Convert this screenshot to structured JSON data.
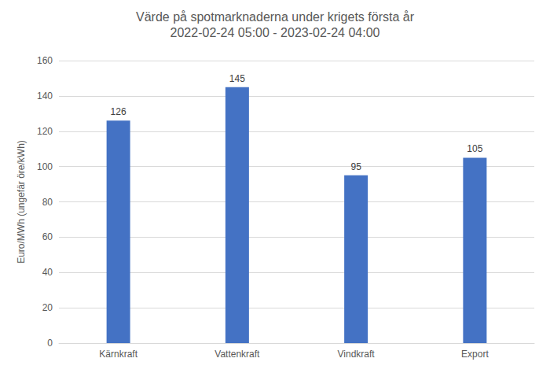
{
  "chart_data": {
    "type": "bar",
    "title": "Värde på spotmarknaderna under krigets första år",
    "subtitle": "2022-02-24 05:00 - 2023-02-24 04:00",
    "y_label": "Euro/MWh (ungefär öre/kWh)",
    "categories": [
      "Kärnkraft",
      "Vattenkraft",
      "Vindkraft",
      "Export"
    ],
    "values": [
      126,
      145,
      95,
      105
    ],
    "color": "#4472c4",
    "ylim": [
      0,
      160
    ],
    "yticks": [
      0,
      20,
      40,
      60,
      80,
      100,
      120,
      140,
      160
    ],
    "grid": true,
    "data_labels": true
  }
}
